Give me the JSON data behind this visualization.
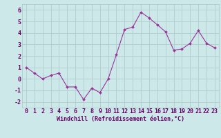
{
  "x": [
    0,
    1,
    2,
    3,
    4,
    5,
    6,
    7,
    8,
    9,
    10,
    11,
    12,
    13,
    14,
    15,
    16,
    17,
    18,
    19,
    20,
    21,
    22,
    23
  ],
  "y": [
    1.0,
    0.5,
    0.0,
    0.3,
    0.5,
    -0.7,
    -0.7,
    -1.8,
    -0.8,
    -1.2,
    0.0,
    2.1,
    4.3,
    4.5,
    5.8,
    5.3,
    4.7,
    4.1,
    2.5,
    2.6,
    3.1,
    4.2,
    3.1,
    2.7
  ],
  "line_color": "#993399",
  "marker_color": "#993399",
  "bg_color": "#cce8e8",
  "grid_color": "#b0cccc",
  "xlabel": "Windchill (Refroidissement éolien,°C)",
  "xlabel_color": "#660066",
  "xlabel_fontsize": 6.0,
  "tick_label_color": "#660066",
  "tick_fontsize": 6.0,
  "ylim": [
    -2.5,
    6.5
  ],
  "xlim": [
    -0.5,
    23.5
  ],
  "yticks": [
    -2,
    -1,
    0,
    1,
    2,
    3,
    4,
    5,
    6
  ],
  "xticks": [
    0,
    1,
    2,
    3,
    4,
    5,
    6,
    7,
    8,
    9,
    10,
    11,
    12,
    13,
    14,
    15,
    16,
    17,
    18,
    19,
    20,
    21,
    22,
    23
  ]
}
